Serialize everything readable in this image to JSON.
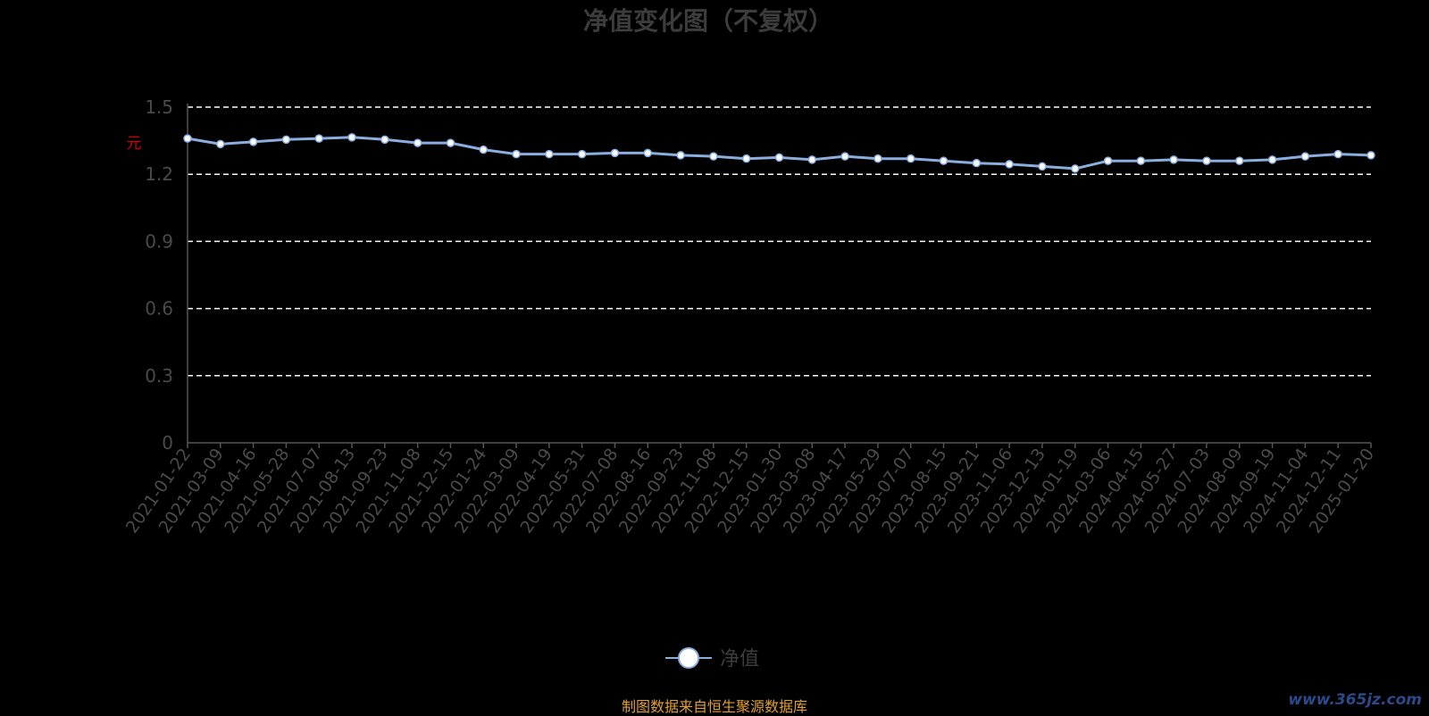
{
  "chart_data": {
    "type": "line",
    "title": "净值变化图（不复权）",
    "ylabel": "元",
    "ylim": [
      0,
      1.5
    ],
    "yticks": [
      0,
      0.3,
      0.6,
      0.9,
      1.2,
      1.5
    ],
    "grid": true,
    "legend_position": "bottom-center",
    "x": [
      "2021-01-22",
      "2021-03-09",
      "2021-04-16",
      "2021-05-28",
      "2021-07-07",
      "2021-08-13",
      "2021-09-23",
      "2021-11-08",
      "2021-12-15",
      "2022-01-24",
      "2022-03-09",
      "2022-04-19",
      "2022-05-31",
      "2022-07-08",
      "2022-08-16",
      "2022-09-23",
      "2022-11-08",
      "2022-12-15",
      "2023-01-30",
      "2023-03-08",
      "2023-04-17",
      "2023-05-29",
      "2023-07-07",
      "2023-08-15",
      "2023-09-21",
      "2023-11-06",
      "2023-12-13",
      "2024-01-19",
      "2024-03-06",
      "2024-04-15",
      "2024-05-27",
      "2024-07-03",
      "2024-08-09",
      "2024-09-19",
      "2024-11-04",
      "2024-12-11",
      "2025-01-20"
    ],
    "series": [
      {
        "name": "净值",
        "color": "#8aaee0",
        "values": [
          1.36,
          1.335,
          1.345,
          1.355,
          1.36,
          1.365,
          1.355,
          1.34,
          1.34,
          1.31,
          1.29,
          1.29,
          1.29,
          1.295,
          1.295,
          1.285,
          1.28,
          1.27,
          1.275,
          1.265,
          1.28,
          1.27,
          1.27,
          1.26,
          1.25,
          1.245,
          1.235,
          1.225,
          1.26,
          1.26,
          1.265,
          1.26,
          1.26,
          1.265,
          1.28,
          1.29,
          1.285
        ]
      }
    ]
  },
  "legend": {
    "label": "净值"
  },
  "source_note": "制图数据来自恒生聚源数据库",
  "watermark": "www.365jz.com"
}
